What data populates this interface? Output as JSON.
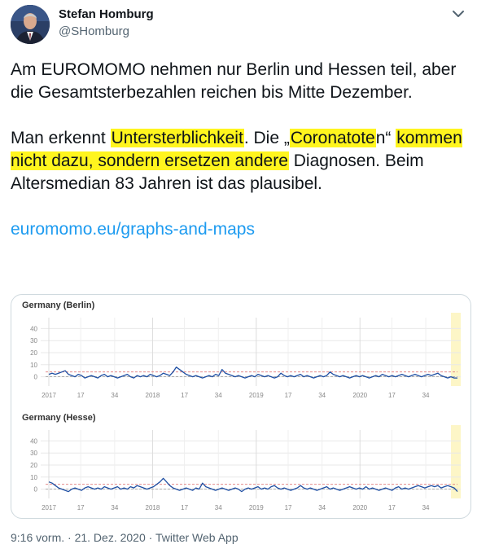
{
  "author": {
    "name": "Stefan Homburg",
    "handle": "@SHomburg"
  },
  "tweet": {
    "p1": "Am EUROMOMO nehmen nur Berlin und Hessen teil, aber die Gesamtsterbezahlen reichen bis Mitte Dezember.",
    "p2_a": "Man erkennt ",
    "p2_hl1": "Untersterblichkeit",
    "p2_b": ". Die „",
    "p2_hl2": "Coronatote",
    "p2_c": "n“ ",
    "p2_hl3": "kommen nicht dazu, sondern ersetzen andere",
    "p2_d": " Diagnosen. Beim Altersmedian 83 Jahren ist das plausibel.",
    "link": "euromomo.eu/graphs-and-maps",
    "highlight_color": "#fff51e",
    "link_color": "#1d9bf0"
  },
  "meta": {
    "timestamp": "9:16 vorm. · 21. Dez. 2020 · Twitter Web App"
  },
  "icons": {
    "more": "chevron-down-icon"
  },
  "chart_data": [
    {
      "type": "line",
      "title": "Germany (Berlin)",
      "y_ticks": [
        "40",
        "30",
        "20",
        "10",
        "0"
      ],
      "x_ticks": [
        "2017",
        "17",
        "34",
        "2018",
        "17",
        "34",
        "2019",
        "17",
        "34",
        "2020",
        "17",
        "34"
      ],
      "ylim": [
        -5,
        45
      ],
      "series": [
        {
          "color": "#1f4fa3",
          "values": [
            2,
            3,
            2,
            3,
            4,
            5,
            2,
            1,
            0,
            2,
            1,
            -1,
            0,
            1,
            0,
            -1,
            1,
            2,
            0,
            1,
            0,
            -1,
            0,
            1,
            2,
            0,
            -1,
            1,
            0,
            1,
            0,
            2,
            1,
            0,
            1,
            3,
            2,
            1,
            4,
            8,
            6,
            4,
            2,
            1,
            0,
            1,
            0,
            -1,
            0,
            1,
            0,
            2,
            1,
            6,
            3,
            2,
            1,
            0,
            1,
            0,
            -1,
            0,
            1,
            0,
            2,
            1,
            0,
            1,
            0,
            -1,
            0,
            3,
            1,
            0,
            1,
            0,
            1,
            2,
            0,
            1,
            0,
            -1,
            0,
            1,
            0,
            1,
            4,
            2,
            1,
            0,
            1,
            0,
            -1,
            0,
            1,
            0,
            1,
            0,
            -1,
            0,
            1,
            0,
            2,
            1,
            0,
            1,
            0,
            1,
            2,
            1,
            0,
            1,
            2,
            1,
            0,
            1,
            2,
            1,
            2,
            3,
            1,
            0,
            -1,
            0,
            -1,
            -1
          ]
        }
      ],
      "baseline": 0,
      "threshold": 4
    },
    {
      "type": "line",
      "title": "Germany (Hesse)",
      "y_ticks": [
        "40",
        "30",
        "20",
        "10",
        "0"
      ],
      "x_ticks": [
        "2017",
        "17",
        "34",
        "2018",
        "17",
        "34",
        "2019",
        "17",
        "34",
        "2020",
        "17",
        "34"
      ],
      "ylim": [
        -5,
        45
      ],
      "series": [
        {
          "color": "#1f4fa3",
          "values": [
            6,
            5,
            3,
            1,
            0,
            -1,
            -2,
            0,
            1,
            0,
            -1,
            1,
            2,
            1,
            0,
            1,
            0,
            2,
            1,
            0,
            1,
            2,
            0,
            1,
            0,
            2,
            1,
            3,
            2,
            1,
            0,
            1,
            2,
            4,
            6,
            9,
            6,
            3,
            1,
            0,
            -1,
            0,
            1,
            0,
            -1,
            1,
            0,
            5,
            2,
            1,
            0,
            -1,
            0,
            1,
            0,
            -1,
            0,
            1,
            0,
            -2,
            0,
            1,
            0,
            1,
            2,
            0,
            1,
            0,
            2,
            3,
            1,
            0,
            1,
            0,
            -1,
            0,
            1,
            3,
            1,
            0,
            1,
            0,
            -1,
            0,
            1,
            2,
            0,
            1,
            0,
            -1,
            0,
            1,
            2,
            1,
            0,
            1,
            0,
            2,
            0,
            1,
            0,
            -1,
            0,
            1,
            0,
            -1,
            1,
            2,
            0,
            1,
            0,
            1,
            2,
            3,
            2,
            1,
            2,
            3,
            2,
            3,
            1,
            2,
            3,
            2,
            1,
            -2
          ]
        }
      ],
      "baseline": 0,
      "threshold": 4
    }
  ]
}
